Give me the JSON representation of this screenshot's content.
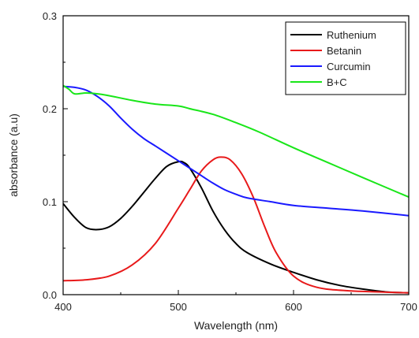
{
  "chart_data": {
    "type": "line",
    "title": "",
    "xlabel": "Wavelength (nm)",
    "ylabel": "absorbance (a.u)",
    "xlim": [
      400,
      700
    ],
    "ylim": [
      0.0,
      0.3
    ],
    "xticks": [
      400,
      500,
      600,
      700
    ],
    "xtick_labels": [
      "400",
      "500",
      "600",
      "700"
    ],
    "yticks": [
      0.0,
      0.1,
      0.2,
      0.3
    ],
    "ytick_labels": [
      "0.0",
      "0.1",
      "0.2",
      "0.3"
    ],
    "grid": false,
    "legend_position": "top-right",
    "series": [
      {
        "name": "Ruthenium",
        "color": "#000000",
        "x": [
          400,
          410,
          420,
          430,
          440,
          450,
          460,
          470,
          480,
          490,
          500,
          505,
          510,
          520,
          530,
          540,
          550,
          560,
          580,
          600,
          620,
          640,
          660,
          680,
          700
        ],
        "y": [
          0.098,
          0.083,
          0.072,
          0.07,
          0.073,
          0.082,
          0.095,
          0.11,
          0.125,
          0.138,
          0.143,
          0.142,
          0.136,
          0.115,
          0.09,
          0.07,
          0.055,
          0.045,
          0.033,
          0.024,
          0.016,
          0.01,
          0.006,
          0.003,
          0.002
        ]
      },
      {
        "name": "Betanin",
        "color": "#e8191a",
        "x": [
          400,
          420,
          440,
          460,
          480,
          500,
          510,
          520,
          530,
          537,
          545,
          555,
          565,
          575,
          585,
          600,
          620,
          650,
          700
        ],
        "y": [
          0.015,
          0.016,
          0.02,
          0.032,
          0.055,
          0.093,
          0.113,
          0.133,
          0.145,
          0.148,
          0.145,
          0.13,
          0.105,
          0.073,
          0.045,
          0.02,
          0.008,
          0.004,
          0.002
        ]
      },
      {
        "name": "Curcumin",
        "color": "#1a1aff",
        "x": [
          400,
          410,
          420,
          430,
          440,
          450,
          460,
          470,
          480,
          490,
          500,
          510,
          520,
          530,
          540,
          550,
          560,
          580,
          600,
          630,
          660,
          700
        ],
        "y": [
          0.224,
          0.223,
          0.22,
          0.213,
          0.203,
          0.19,
          0.178,
          0.168,
          0.16,
          0.152,
          0.144,
          0.136,
          0.128,
          0.12,
          0.113,
          0.108,
          0.104,
          0.1,
          0.096,
          0.093,
          0.09,
          0.085
        ]
      },
      {
        "name": "B+C",
        "color": "#19e619",
        "x": [
          400,
          405,
          410,
          420,
          430,
          440,
          460,
          480,
          500,
          510,
          530,
          550,
          570,
          600,
          630,
          660,
          700
        ],
        "y": [
          0.225,
          0.221,
          0.216,
          0.217,
          0.216,
          0.214,
          0.209,
          0.205,
          0.203,
          0.2,
          0.194,
          0.185,
          0.175,
          0.158,
          0.142,
          0.126,
          0.105
        ]
      }
    ]
  }
}
